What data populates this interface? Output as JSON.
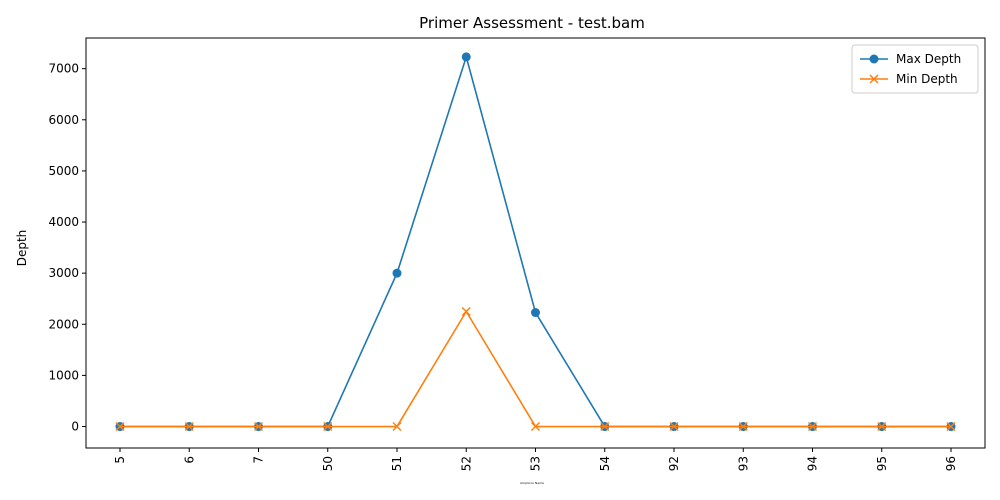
{
  "chart_data": {
    "type": "line",
    "title": "Primer Assessment - test.bam",
    "xlabel": "Amplicon Name",
    "ylabel": "Depth",
    "categories": [
      "5",
      "6",
      "7",
      "50",
      "51",
      "52",
      "53",
      "54",
      "92",
      "93",
      "94",
      "95",
      "96"
    ],
    "ylim": [
      -420,
      7600
    ],
    "yticks": [
      0,
      1000,
      2000,
      3000,
      4000,
      5000,
      6000,
      7000
    ],
    "grid": false,
    "legend_position": "top-right",
    "series": [
      {
        "name": "Max Depth",
        "marker": "circle",
        "color": "#1f77b4",
        "values": [
          0,
          0,
          0,
          0,
          3000,
          7230,
          2230,
          0,
          0,
          0,
          0,
          0,
          0
        ]
      },
      {
        "name": "Min Depth",
        "marker": "x",
        "color": "#ff7f0e",
        "values": [
          0,
          0,
          0,
          0,
          0,
          2250,
          0,
          0,
          0,
          0,
          0,
          0,
          0
        ]
      }
    ]
  }
}
